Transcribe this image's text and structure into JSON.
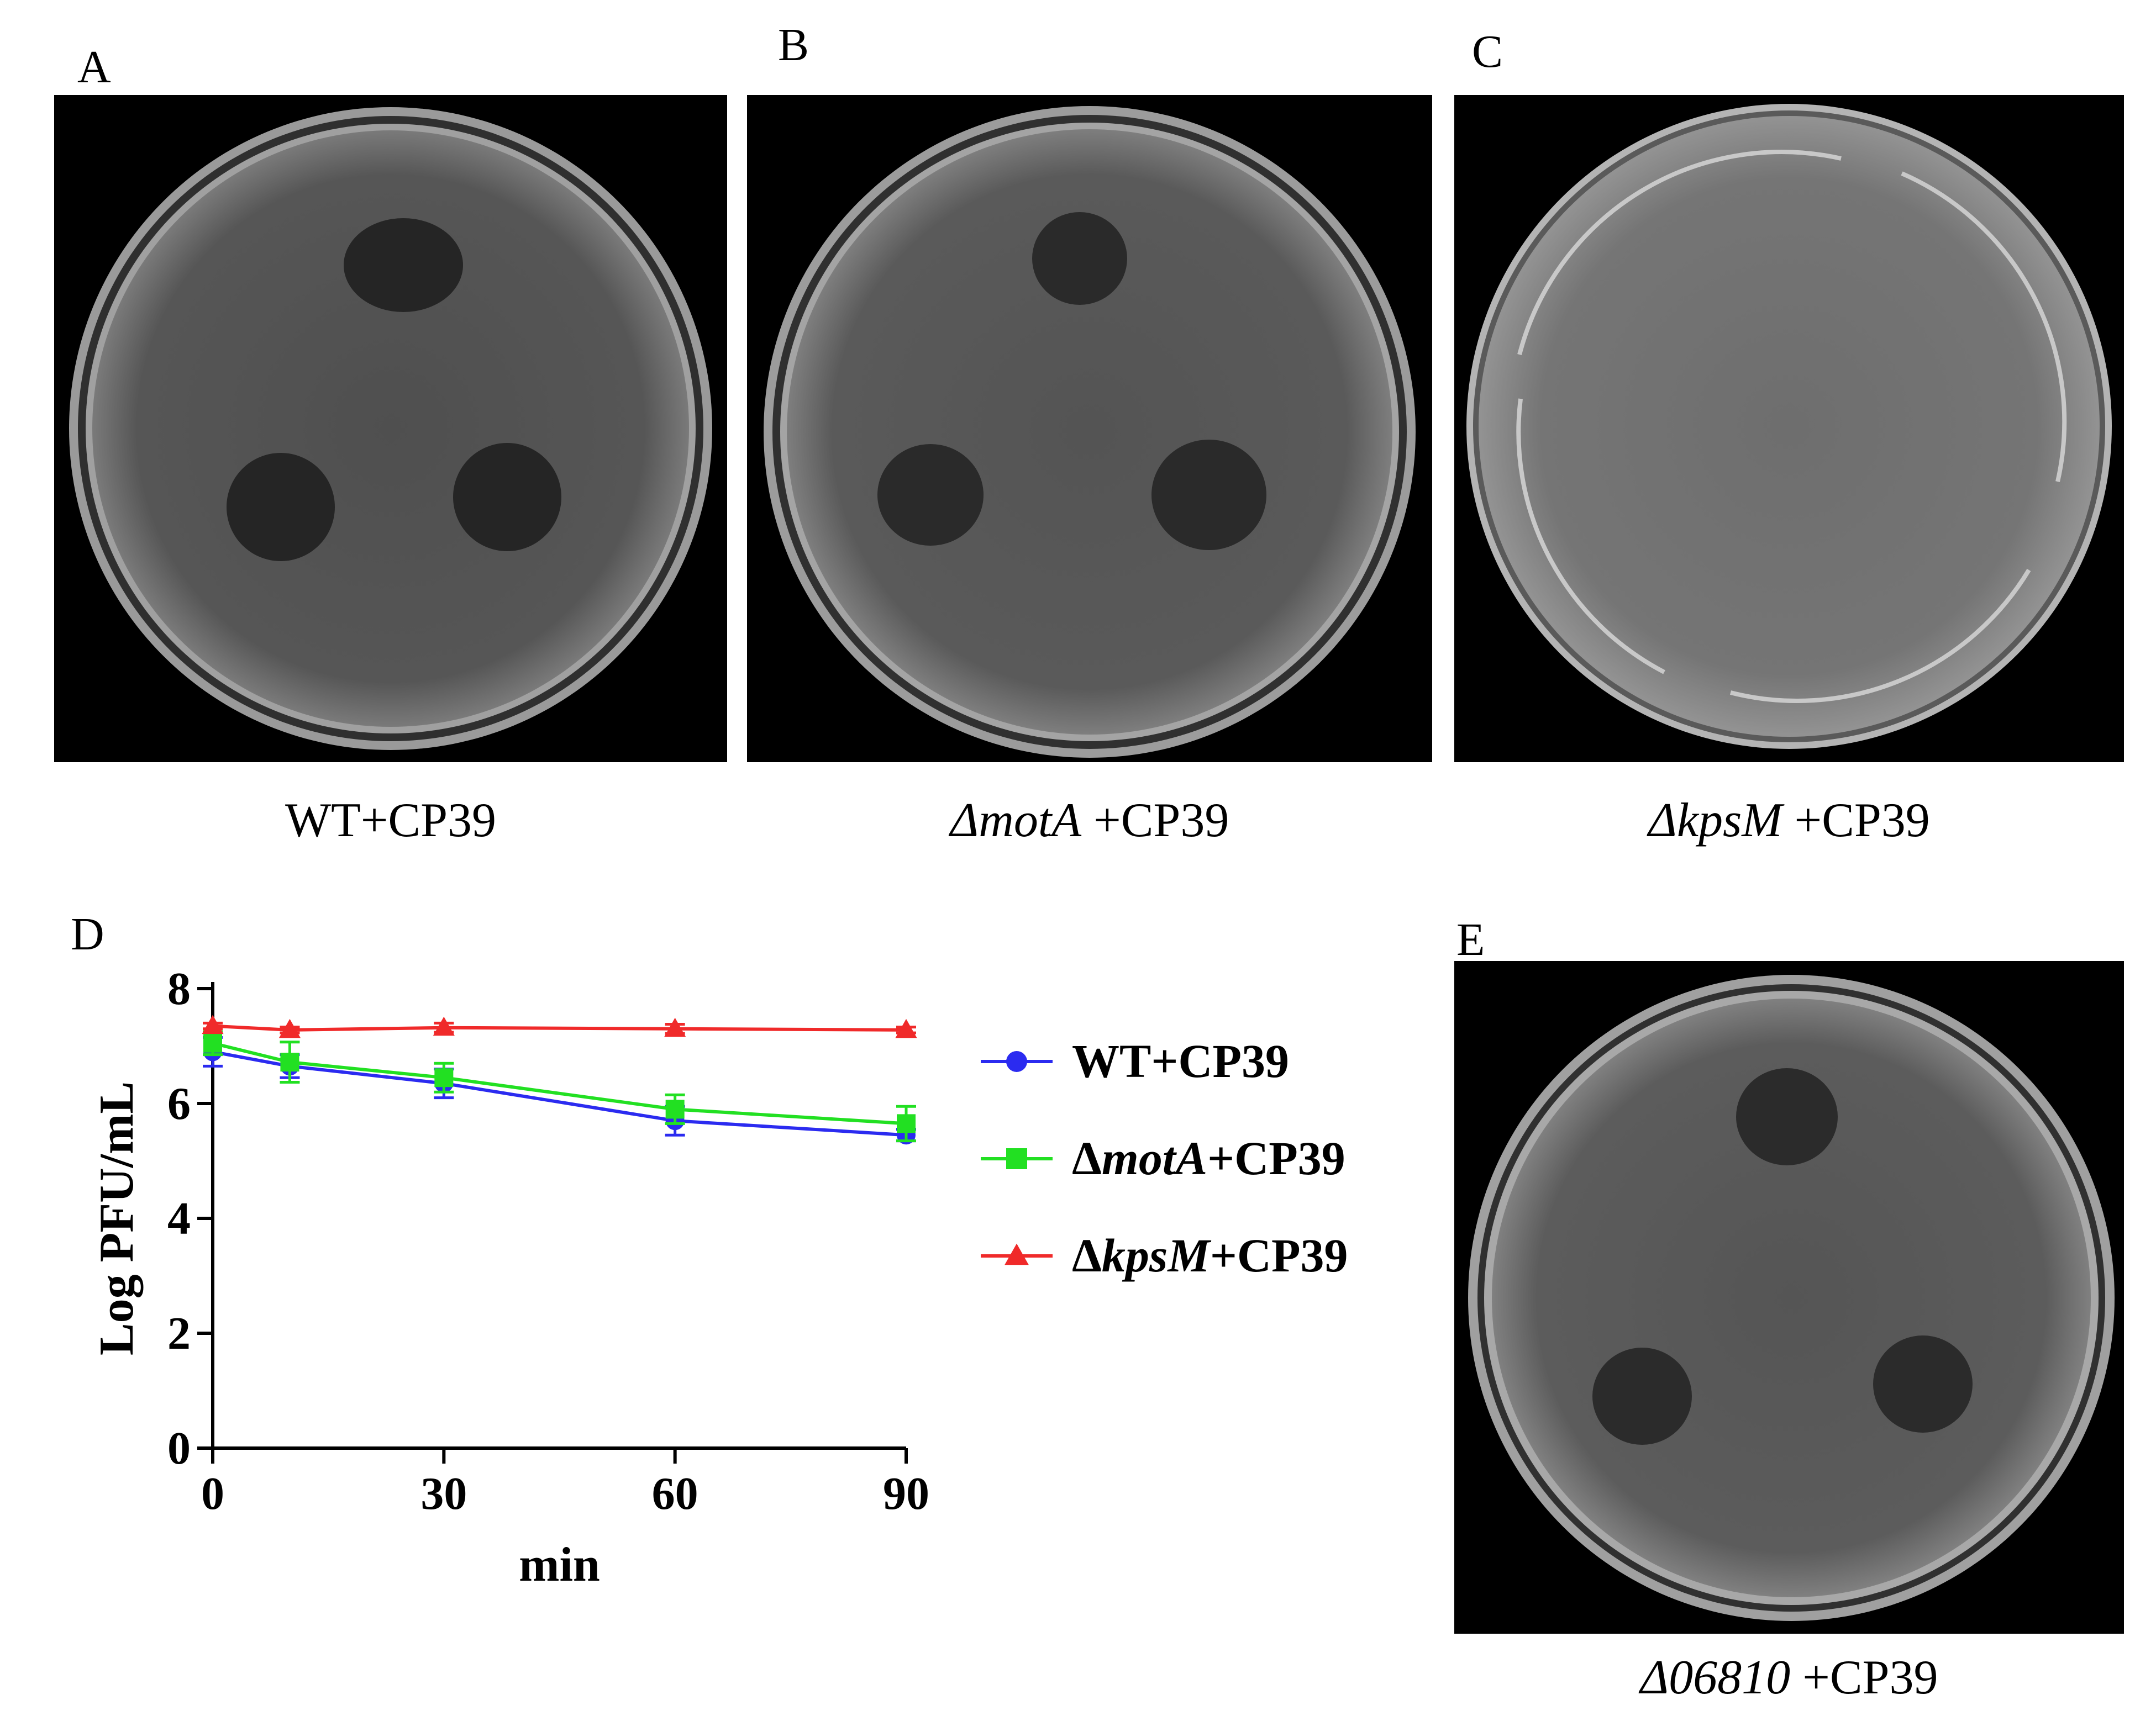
{
  "panels": {
    "a": {
      "letter": "A",
      "caption": "WT+CP39"
    },
    "b": {
      "letter": "B",
      "caption_italic": "Δ​motA",
      "caption_rest": " +CP39"
    },
    "c": {
      "letter": "C",
      "caption_italic": "ΔkpsM",
      "caption_rest": " +CP39"
    },
    "d": {
      "letter": "D"
    },
    "e": {
      "letter": "E",
      "caption_italic": "Δ06810",
      "caption_rest": " +CP39"
    }
  },
  "colors": {
    "wt": "#2b2bf0",
    "mota": "#22e022",
    "kpsm": "#f02a2a",
    "plate_dark": "#000000",
    "agar": "#4a4a4a",
    "agar_light": "#6a6a6a",
    "plaque": "#262626"
  },
  "chart_data": {
    "type": "line",
    "xlabel": "min",
    "ylabel": "Log PFU/mL",
    "xlim": [
      0,
      90
    ],
    "ylim": [
      0,
      8
    ],
    "xticks": [
      "0",
      "30",
      "60",
      "90"
    ],
    "yticks": [
      "0",
      "2",
      "4",
      "6",
      "8"
    ],
    "grid": false,
    "legend_position": "right",
    "x": [
      0,
      10,
      30,
      60,
      90
    ],
    "series": [
      {
        "name": "WT+CP39",
        "name_prefix": "",
        "name_italic": "",
        "name_suffix": "WT+CP39",
        "marker": "circle",
        "color": "#2b2bf0",
        "values": [
          6.9,
          6.65,
          6.35,
          5.7,
          5.45
        ],
        "errors": [
          0.25,
          0.2,
          0.25,
          0.25,
          0.1
        ]
      },
      {
        "name": "ΔmotA+CP39",
        "name_prefix": "Δ",
        "name_italic": "motA",
        "name_suffix": "+CP39",
        "marker": "square",
        "color": "#22e022",
        "values": [
          7.05,
          6.72,
          6.45,
          5.9,
          5.65
        ],
        "errors": [
          0.2,
          0.35,
          0.25,
          0.25,
          0.3
        ]
      },
      {
        "name": "ΔkpsM+CP39",
        "name_prefix": "Δ",
        "name_italic": "kpsM",
        "name_suffix": "+CP39",
        "marker": "triangle",
        "color": "#f02a2a",
        "values": [
          7.35,
          7.28,
          7.32,
          7.3,
          7.28
        ],
        "errors": [
          0.05,
          0.05,
          0.08,
          0.08,
          0.05
        ]
      }
    ]
  }
}
